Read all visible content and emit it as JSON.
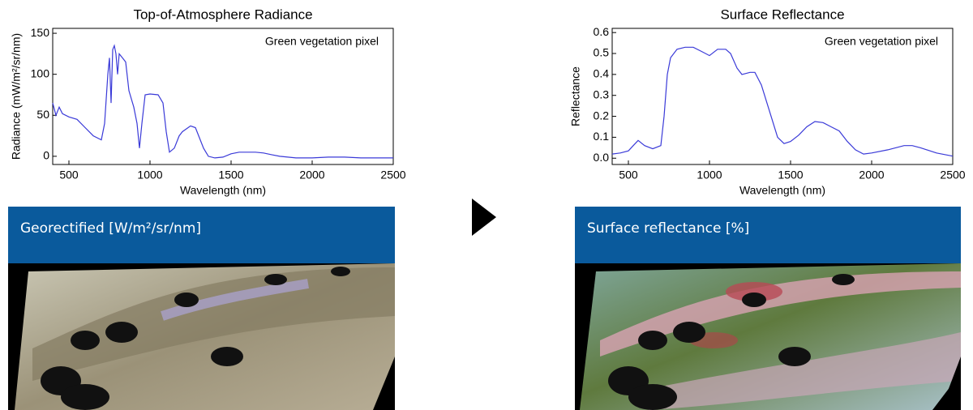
{
  "chart_data": [
    {
      "type": "line",
      "title": "Top-of-Atmosphere Radiance",
      "x_label": "Wavelength (nm)",
      "y_label": "Radiance (mW/m²/sr/nm)",
      "annotation": "Green vegetation pixel",
      "color": "#3a3ad8",
      "xlim": [
        400,
        2500
      ],
      "xticks": [
        500,
        1000,
        1500,
        2000,
        2500
      ],
      "ylim": [
        -10,
        156
      ],
      "yticks": [
        0,
        50,
        100,
        150
      ],
      "x": [
        400,
        420,
        440,
        460,
        500,
        550,
        600,
        650,
        700,
        720,
        740,
        750,
        760,
        770,
        780,
        790,
        800,
        810,
        830,
        850,
        870,
        900,
        920,
        935,
        950,
        970,
        1000,
        1050,
        1080,
        1100,
        1120,
        1150,
        1180,
        1200,
        1250,
        1280,
        1300,
        1330,
        1360,
        1400,
        1450,
        1500,
        1550,
        1600,
        1650,
        1700,
        1750,
        1800,
        1850,
        1900,
        2000,
        2100,
        2200,
        2300,
        2400,
        2500
      ],
      "values": [
        65,
        50,
        60,
        52,
        48,
        45,
        35,
        25,
        20,
        40,
        100,
        120,
        65,
        130,
        135,
        125,
        100,
        125,
        120,
        115,
        80,
        60,
        40,
        10,
        40,
        75,
        76,
        75,
        65,
        30,
        5,
        10,
        25,
        30,
        37,
        35,
        25,
        10,
        0,
        -2,
        -1,
        3,
        5,
        5,
        5,
        4,
        2,
        0,
        -1,
        -2,
        -2,
        -1,
        -1,
        -2,
        -2,
        -2
      ]
    },
    {
      "type": "line",
      "title": "Surface Reflectance",
      "x_label": "Wavelength (nm)",
      "y_label": "Reflectance",
      "annotation": "Green vegetation pixel",
      "color": "#3a3ad8",
      "xlim": [
        400,
        2500
      ],
      "xticks": [
        500,
        1000,
        1500,
        2000,
        2500
      ],
      "ylim": [
        -0.03,
        0.62
      ],
      "yticks": [
        {
          "value": 0,
          "label": "0.0"
        },
        0.1,
        0.2,
        0.3,
        0.4,
        0.5,
        0.6
      ],
      "x": [
        400,
        450,
        500,
        530,
        560,
        600,
        650,
        700,
        720,
        740,
        760,
        800,
        850,
        900,
        950,
        1000,
        1050,
        1100,
        1130,
        1170,
        1200,
        1250,
        1280,
        1320,
        1380,
        1420,
        1460,
        1500,
        1550,
        1600,
        1650,
        1700,
        1750,
        1800,
        1850,
        1900,
        1950,
        2000,
        2100,
        2200,
        2250,
        2300,
        2400,
        2500
      ],
      "values": [
        0.02,
        0.025,
        0.035,
        0.06,
        0.085,
        0.06,
        0.045,
        0.06,
        0.2,
        0.4,
        0.48,
        0.52,
        0.53,
        0.53,
        0.51,
        0.49,
        0.52,
        0.52,
        0.5,
        0.43,
        0.4,
        0.41,
        0.41,
        0.35,
        0.2,
        0.1,
        0.07,
        0.08,
        0.11,
        0.15,
        0.175,
        0.17,
        0.15,
        0.13,
        0.08,
        0.04,
        0.02,
        0.025,
        0.04,
        0.06,
        0.06,
        0.05,
        0.025,
        0.01
      ]
    }
  ],
  "panels": [
    {
      "label": "Georectified [W/m²/sr/nm]"
    },
    {
      "label": "Surface reflectance [%]"
    }
  ]
}
